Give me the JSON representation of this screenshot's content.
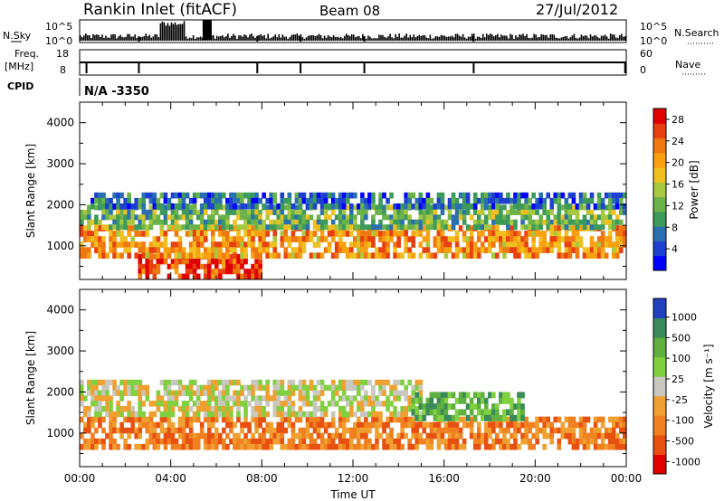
{
  "header": {
    "station": "Rankin Inlet (fitACF)",
    "beam": "Beam 08",
    "date": "27/Jul/2012"
  },
  "top_panels": {
    "nsky_label": "N.Sky",
    "nsky_ticks": [
      "10^5",
      "10^0"
    ],
    "nsearch_label": "N.Search",
    "nsearch_ticks": [
      "10^5",
      "10^0"
    ],
    "freq_label_1": "Freq.",
    "freq_label_2": "[MHz]",
    "freq_ticks": [
      "18",
      "8"
    ],
    "nave_label": "Nave",
    "nave_ticks": [
      "60",
      "0"
    ],
    "cpid_label": "CPID",
    "cpid_value": "N/A -3350"
  },
  "chart_data": [
    {
      "type": "heatmap",
      "panel": "power",
      "xlabel": "",
      "ylabel": "Slant Range [km]",
      "xlim": [
        0,
        24
      ],
      "ylim": [
        180,
        4500
      ],
      "yticks": [
        "1000",
        "2000",
        "3000",
        "4000"
      ],
      "colorbar": {
        "label": "Power [dB]",
        "ticks": [
          "4",
          "8",
          "12",
          "16",
          "20",
          "24",
          "28"
        ],
        "range": [
          0,
          30
        ],
        "colors": [
          "#0000ff",
          "#1e40d0",
          "#2a70b0",
          "#3c9a5a",
          "#6cb24a",
          "#a8c840",
          "#f0c020",
          "#f8a010",
          "#f07810",
          "#e84010",
          "#e00000"
        ]
      },
      "echo_bands": [
        {
          "name": "near",
          "range_km": [
            200,
            800
          ],
          "t_start": 2.5,
          "t_end": 8.0,
          "power_db": 28
        },
        {
          "name": "main",
          "range_km": [
            700,
            1500
          ],
          "t_start": 0.0,
          "t_end": 24.0,
          "power_db": 22
        },
        {
          "name": "mid",
          "range_km": [
            1400,
            2000
          ],
          "t_start": 0.0,
          "t_end": 24.0,
          "power_db": 12
        },
        {
          "name": "upper",
          "range_km": [
            1900,
            2300
          ],
          "t_start": 0.5,
          "t_end": 24.0,
          "power_db": 6
        }
      ]
    },
    {
      "type": "heatmap",
      "panel": "velocity",
      "xlabel": "Time UT",
      "ylabel": "Slant Range [km]",
      "xlim": [
        0,
        24
      ],
      "ylim": [
        180,
        4500
      ],
      "xticks": [
        "00:00",
        "04:00",
        "08:00",
        "12:00",
        "16:00",
        "20:00",
        "00:00"
      ],
      "yticks": [
        "1000",
        "2000",
        "3000",
        "4000"
      ],
      "colorbar": {
        "label": "Velocity [m s⁻¹]",
        "ticks": [
          "1000",
          "500",
          "100",
          "25",
          "-25",
          "-100",
          "-500",
          "-1000"
        ],
        "range": [
          -1000,
          1000
        ],
        "colors": [
          "#2040c0",
          "#3a8a5a",
          "#60b040",
          "#80d040",
          "#c8c8c0",
          "#f0a030",
          "#f08020",
          "#e85010",
          "#e00000"
        ]
      },
      "echo_bands": [
        {
          "name": "main",
          "range_km": [
            600,
            1400
          ],
          "t_start": 0.0,
          "t_end": 24.0,
          "velocity": -300
        },
        {
          "name": "upper",
          "range_km": [
            1400,
            2300
          ],
          "t_start": 0.0,
          "t_end": 15.0,
          "velocity": 0
        },
        {
          "name": "late",
          "range_km": [
            1300,
            2000
          ],
          "t_start": 14.5,
          "t_end": 19.5,
          "velocity": 150
        }
      ]
    }
  ]
}
